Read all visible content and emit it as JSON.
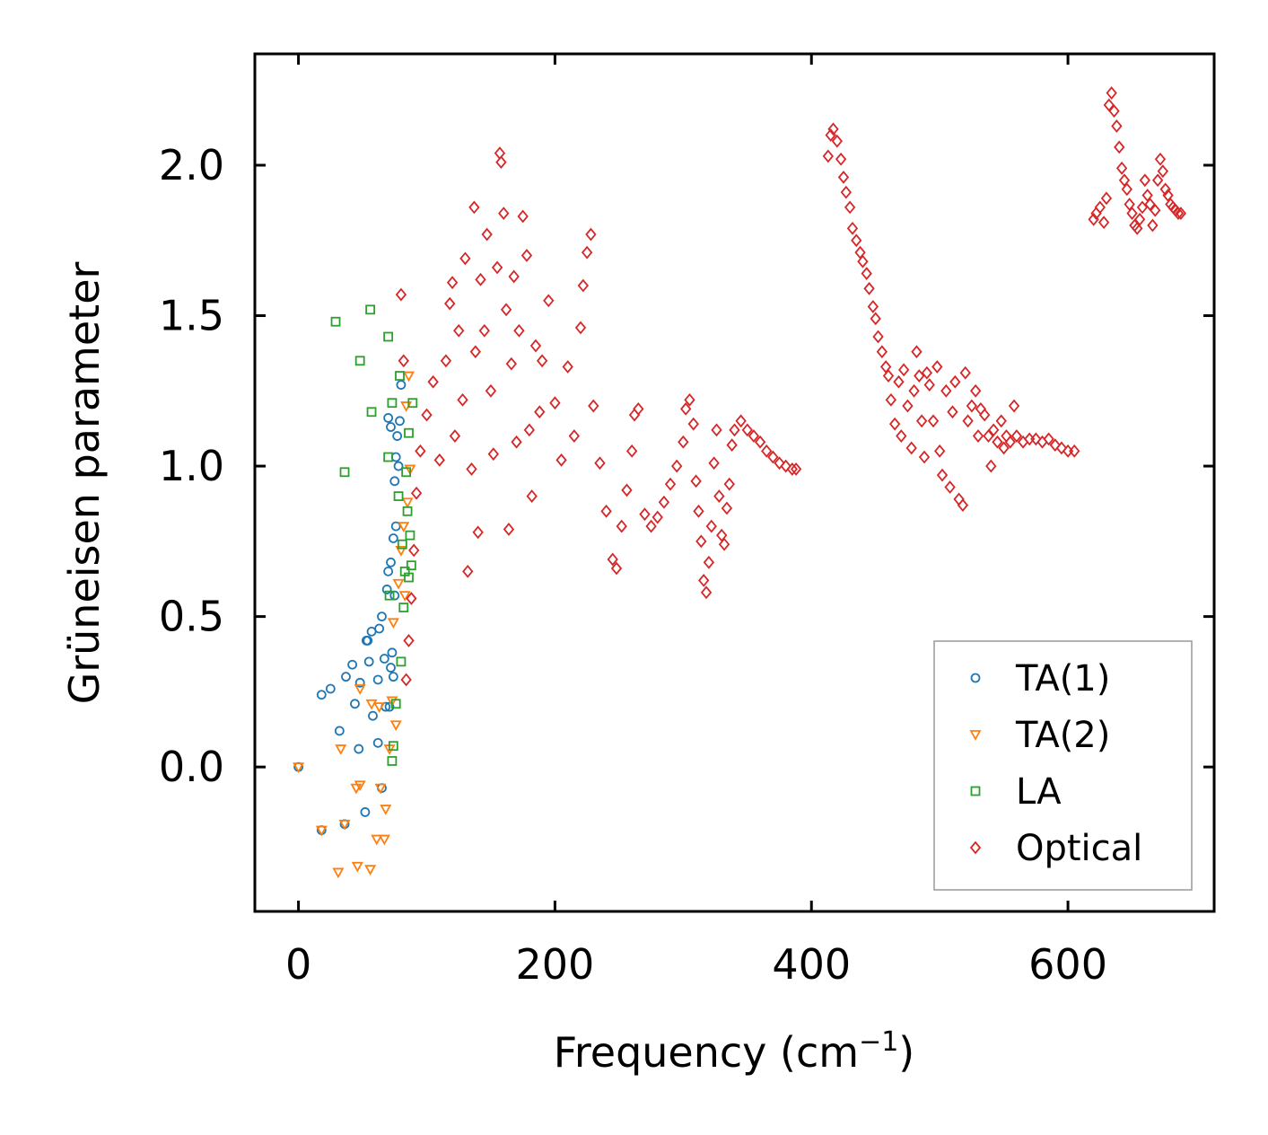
{
  "chart_data": {
    "type": "scatter",
    "title": "",
    "xlabel": "Frequency (cm",
    "xlabel_sup": "−1",
    "xlabel_end": ")",
    "ylabel": "Grüneisen parameter",
    "xlim": [
      -34,
      714
    ],
    "ylim": [
      -0.48,
      2.37
    ],
    "xticks": [
      0,
      200,
      400,
      600
    ],
    "xtick_labels": [
      "0",
      "200",
      "400",
      "600"
    ],
    "yticks": [
      0.0,
      0.5,
      1.0,
      1.5,
      2.0
    ],
    "ytick_labels": [
      "0.0",
      "0.5",
      "1.0",
      "1.5",
      "2.0"
    ],
    "grid": false,
    "legend_position": "bottom-right",
    "series": [
      {
        "name": "TA(1)",
        "marker": "circle",
        "color": "#1f77b4",
        "points": [
          [
            0,
            0
          ],
          [
            18,
            -0.21
          ],
          [
            18,
            0.24
          ],
          [
            25,
            0.26
          ],
          [
            32,
            0.12
          ],
          [
            36,
            -0.19
          ],
          [
            37,
            0.3
          ],
          [
            42,
            0.34
          ],
          [
            44,
            0.21
          ],
          [
            47,
            0.06
          ],
          [
            48,
            0.28
          ],
          [
            52,
            -0.15
          ],
          [
            53,
            0.42
          ],
          [
            54,
            0.42
          ],
          [
            55,
            0.35
          ],
          [
            57,
            0.45
          ],
          [
            58,
            0.17
          ],
          [
            62,
            0.08
          ],
          [
            62,
            0.29
          ],
          [
            63,
            0.46
          ],
          [
            65,
            -0.07
          ],
          [
            65,
            0.5
          ],
          [
            67,
            0.36
          ],
          [
            68,
            0.2
          ],
          [
            69,
            0.59
          ],
          [
            70,
            0.65
          ],
          [
            71,
            0.2
          ],
          [
            72,
            0.33
          ],
          [
            72,
            0.68
          ],
          [
            73,
            0.38
          ],
          [
            74,
            0.3
          ],
          [
            74,
            0.76
          ],
          [
            75,
            0.57
          ],
          [
            75,
            0.95
          ],
          [
            76,
            0.8
          ],
          [
            76,
            1.03
          ],
          [
            77,
            1.1
          ],
          [
            78,
            1.0
          ],
          [
            79,
            1.15
          ],
          [
            80,
            1.27
          ],
          [
            70,
            1.16
          ],
          [
            72,
            1.13
          ]
        ]
      },
      {
        "name": "TA(2)",
        "marker": "triangle-down",
        "color": "#ff7f0e",
        "points": [
          [
            0,
            0
          ],
          [
            18,
            -0.21
          ],
          [
            31,
            -0.35
          ],
          [
            33,
            0.06
          ],
          [
            36,
            -0.19
          ],
          [
            45,
            -0.07
          ],
          [
            46,
            -0.33
          ],
          [
            48,
            -0.06
          ],
          [
            48,
            0.26
          ],
          [
            56,
            -0.34
          ],
          [
            57,
            0.21
          ],
          [
            61,
            -0.24
          ],
          [
            63,
            0.2
          ],
          [
            64,
            -0.07
          ],
          [
            67,
            -0.24
          ],
          [
            68,
            -0.14
          ],
          [
            71,
            0.06
          ],
          [
            73,
            0.22
          ],
          [
            74,
            0.48
          ],
          [
            76,
            0.14
          ],
          [
            78,
            0.61
          ],
          [
            80,
            0.72
          ],
          [
            82,
            0.8
          ],
          [
            83,
            0.57
          ],
          [
            85,
            0.88
          ],
          [
            86,
            1.3
          ],
          [
            87,
            0.99
          ],
          [
            84,
            1.2
          ]
        ]
      },
      {
        "name": "LA",
        "marker": "square",
        "color": "#2ca02c",
        "points": [
          [
            29,
            1.48
          ],
          [
            36,
            0.98
          ],
          [
            48,
            1.35
          ],
          [
            56,
            1.52
          ],
          [
            57,
            1.18
          ],
          [
            70,
            1.43
          ],
          [
            70,
            1.03
          ],
          [
            71,
            0.57
          ],
          [
            73,
            1.21
          ],
          [
            73,
            0.02
          ],
          [
            74,
            0.07
          ],
          [
            76,
            0.21
          ],
          [
            78,
            0.9
          ],
          [
            79,
            1.3
          ],
          [
            80,
            0.35
          ],
          [
            81,
            0.74
          ],
          [
            82,
            0.53
          ],
          [
            83,
            0.65
          ],
          [
            84,
            0.98
          ],
          [
            86,
            0.63
          ],
          [
            87,
            0.77
          ],
          [
            88,
            0.67
          ],
          [
            89,
            1.21
          ],
          [
            86,
            1.11
          ],
          [
            85,
            0.85
          ]
        ]
      },
      {
        "name": "Optical",
        "marker": "diamond",
        "color": "#d62728",
        "points": [
          [
            80,
            1.57
          ],
          [
            82,
            1.35
          ],
          [
            84,
            0.29
          ],
          [
            86,
            0.42
          ],
          [
            88,
            0.56
          ],
          [
            90,
            0.72
          ],
          [
            92,
            0.91
          ],
          [
            95,
            1.05
          ],
          [
            100,
            1.17
          ],
          [
            105,
            1.28
          ],
          [
            110,
            1.02
          ],
          [
            115,
            1.35
          ],
          [
            118,
            1.54
          ],
          [
            120,
            1.61
          ],
          [
            122,
            1.1
          ],
          [
            125,
            1.45
          ],
          [
            128,
            1.22
          ],
          [
            130,
            1.69
          ],
          [
            132,
            0.65
          ],
          [
            135,
            0.99
          ],
          [
            137,
            1.86
          ],
          [
            138,
            1.38
          ],
          [
            140,
            0.78
          ],
          [
            142,
            1.62
          ],
          [
            145,
            1.45
          ],
          [
            147,
            1.77
          ],
          [
            150,
            1.25
          ],
          [
            152,
            1.04
          ],
          [
            155,
            1.66
          ],
          [
            157,
            2.04
          ],
          [
            158,
            2.01
          ],
          [
            160,
            1.84
          ],
          [
            162,
            1.52
          ],
          [
            164,
            0.79
          ],
          [
            166,
            1.34
          ],
          [
            168,
            1.63
          ],
          [
            170,
            1.08
          ],
          [
            172,
            1.45
          ],
          [
            175,
            1.83
          ],
          [
            178,
            1.7
          ],
          [
            180,
            1.12
          ],
          [
            182,
            0.9
          ],
          [
            185,
            1.4
          ],
          [
            188,
            1.18
          ],
          [
            190,
            1.35
          ],
          [
            195,
            1.55
          ],
          [
            200,
            1.21
          ],
          [
            205,
            1.02
          ],
          [
            210,
            1.33
          ],
          [
            215,
            1.1
          ],
          [
            220,
            1.46
          ],
          [
            222,
            1.6
          ],
          [
            225,
            1.71
          ],
          [
            228,
            1.77
          ],
          [
            230,
            1.2
          ],
          [
            235,
            1.01
          ],
          [
            240,
            0.85
          ],
          [
            245,
            0.69
          ],
          [
            248,
            0.66
          ],
          [
            252,
            0.8
          ],
          [
            256,
            0.92
          ],
          [
            260,
            1.05
          ],
          [
            262,
            1.17
          ],
          [
            265,
            1.19
          ],
          [
            270,
            0.84
          ],
          [
            275,
            0.8
          ],
          [
            280,
            0.83
          ],
          [
            285,
            0.88
          ],
          [
            290,
            0.94
          ],
          [
            295,
            1.0
          ],
          [
            300,
            1.08
          ],
          [
            302,
            1.19
          ],
          [
            305,
            1.22
          ],
          [
            308,
            1.14
          ],
          [
            310,
            0.95
          ],
          [
            312,
            0.85
          ],
          [
            314,
            0.75
          ],
          [
            316,
            0.62
          ],
          [
            318,
            0.58
          ],
          [
            320,
            0.68
          ],
          [
            322,
            0.8
          ],
          [
            324,
            1.01
          ],
          [
            326,
            1.12
          ],
          [
            328,
            0.9
          ],
          [
            330,
            0.77
          ],
          [
            332,
            0.74
          ],
          [
            334,
            0.86
          ],
          [
            336,
            0.94
          ],
          [
            338,
            1.07
          ],
          [
            340,
            1.12
          ],
          [
            345,
            1.15
          ],
          [
            350,
            1.12
          ],
          [
            355,
            1.1
          ],
          [
            360,
            1.08
          ],
          [
            365,
            1.05
          ],
          [
            370,
            1.03
          ],
          [
            375,
            1.01
          ],
          [
            380,
            1.0
          ],
          [
            385,
            0.99
          ],
          [
            388,
            0.99
          ],
          [
            413,
            2.03
          ],
          [
            415,
            2.1
          ],
          [
            417,
            2.12
          ],
          [
            420,
            2.08
          ],
          [
            423,
            2.02
          ],
          [
            425,
            1.96
          ],
          [
            427,
            1.91
          ],
          [
            430,
            1.86
          ],
          [
            432,
            1.79
          ],
          [
            435,
            1.75
          ],
          [
            438,
            1.71
          ],
          [
            440,
            1.68
          ],
          [
            443,
            1.64
          ],
          [
            445,
            1.59
          ],
          [
            448,
            1.53
          ],
          [
            450,
            1.49
          ],
          [
            452,
            1.43
          ],
          [
            455,
            1.38
          ],
          [
            458,
            1.33
          ],
          [
            460,
            1.3
          ],
          [
            462,
            1.22
          ],
          [
            465,
            1.14
          ],
          [
            468,
            1.28
          ],
          [
            470,
            1.1
          ],
          [
            472,
            1.32
          ],
          [
            475,
            1.2
          ],
          [
            478,
            1.06
          ],
          [
            480,
            1.25
          ],
          [
            482,
            1.38
          ],
          [
            484,
            1.3
          ],
          [
            486,
            1.15
          ],
          [
            488,
            1.03
          ],
          [
            490,
            1.31
          ],
          [
            492,
            1.27
          ],
          [
            495,
            1.15
          ],
          [
            498,
            1.33
          ],
          [
            500,
            1.05
          ],
          [
            502,
            0.97
          ],
          [
            505,
            1.25
          ],
          [
            508,
            0.93
          ],
          [
            510,
            1.18
          ],
          [
            512,
            1.28
          ],
          [
            515,
            0.89
          ],
          [
            518,
            0.87
          ],
          [
            520,
            1.31
          ],
          [
            522,
            1.15
          ],
          [
            525,
            1.2
          ],
          [
            528,
            1.25
          ],
          [
            530,
            1.1
          ],
          [
            532,
            1.19
          ],
          [
            535,
            1.17
          ],
          [
            538,
            1.1
          ],
          [
            540,
            1.0
          ],
          [
            542,
            1.12
          ],
          [
            545,
            1.08
          ],
          [
            548,
            1.15
          ],
          [
            550,
            1.06
          ],
          [
            552,
            1.1
          ],
          [
            555,
            1.08
          ],
          [
            558,
            1.2
          ],
          [
            560,
            1.1
          ],
          [
            565,
            1.08
          ],
          [
            570,
            1.09
          ],
          [
            575,
            1.09
          ],
          [
            580,
            1.08
          ],
          [
            585,
            1.09
          ],
          [
            590,
            1.07
          ],
          [
            595,
            1.06
          ],
          [
            600,
            1.05
          ],
          [
            605,
            1.05
          ],
          [
            620,
            1.82
          ],
          [
            622,
            1.84
          ],
          [
            625,
            1.86
          ],
          [
            628,
            1.81
          ],
          [
            630,
            1.89
          ],
          [
            632,
            2.2
          ],
          [
            634,
            2.24
          ],
          [
            636,
            2.18
          ],
          [
            638,
            2.13
          ],
          [
            640,
            2.06
          ],
          [
            642,
            1.99
          ],
          [
            644,
            1.95
          ],
          [
            646,
            1.92
          ],
          [
            648,
            1.87
          ],
          [
            650,
            1.84
          ],
          [
            652,
            1.8
          ],
          [
            654,
            1.79
          ],
          [
            656,
            1.82
          ],
          [
            658,
            1.86
          ],
          [
            660,
            1.95
          ],
          [
            662,
            1.9
          ],
          [
            664,
            1.87
          ],
          [
            666,
            1.8
          ],
          [
            668,
            1.85
          ],
          [
            670,
            1.95
          ],
          [
            672,
            2.02
          ],
          [
            674,
            1.98
          ],
          [
            676,
            1.92
          ],
          [
            678,
            1.9
          ],
          [
            680,
            1.87
          ],
          [
            682,
            1.86
          ],
          [
            684,
            1.85
          ],
          [
            686,
            1.84
          ],
          [
            688,
            1.84
          ]
        ]
      }
    ]
  }
}
